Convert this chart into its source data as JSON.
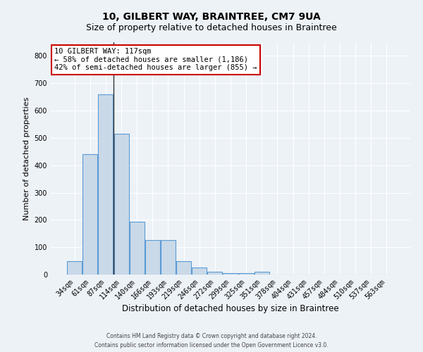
{
  "title1": "10, GILBERT WAY, BRAINTREE, CM7 9UA",
  "title2": "Size of property relative to detached houses in Braintree",
  "xlabel": "Distribution of detached houses by size in Braintree",
  "ylabel": "Number of detached properties",
  "categories": [
    "34sqm",
    "61sqm",
    "87sqm",
    "114sqm",
    "140sqm",
    "166sqm",
    "193sqm",
    "219sqm",
    "246sqm",
    "272sqm",
    "299sqm",
    "325sqm",
    "351sqm",
    "378sqm",
    "404sqm",
    "431sqm",
    "457sqm",
    "484sqm",
    "510sqm",
    "537sqm",
    "563sqm"
  ],
  "values": [
    50,
    440,
    660,
    515,
    193,
    125,
    125,
    50,
    27,
    10,
    5,
    5,
    10,
    0,
    0,
    0,
    0,
    0,
    0,
    0,
    0
  ],
  "bar_color": "#c9d9e8",
  "bar_edge_color": "#5b9bd5",
  "highlight_index": 3,
  "highlight_line_color": "#333333",
  "annotation_title": "10 GILBERT WAY: 117sqm",
  "annotation_line1": "← 58% of detached houses are smaller (1,186)",
  "annotation_line2": "42% of semi-detached houses are larger (855) →",
  "annotation_box_color": "#ffffff",
  "annotation_box_edge": "#cc0000",
  "ylim": [
    0,
    850
  ],
  "yticks": [
    0,
    100,
    200,
    300,
    400,
    500,
    600,
    700,
    800
  ],
  "footer1": "Contains HM Land Registry data © Crown copyright and database right 2024.",
  "footer2": "Contains public sector information licensed under the Open Government Licence v3.0.",
  "bg_color": "#edf2f7",
  "grid_color": "#ffffff",
  "title1_fontsize": 10,
  "title2_fontsize": 9,
  "tick_fontsize": 7,
  "ylabel_fontsize": 8,
  "xlabel_fontsize": 8.5,
  "ann_fontsize": 7.5
}
